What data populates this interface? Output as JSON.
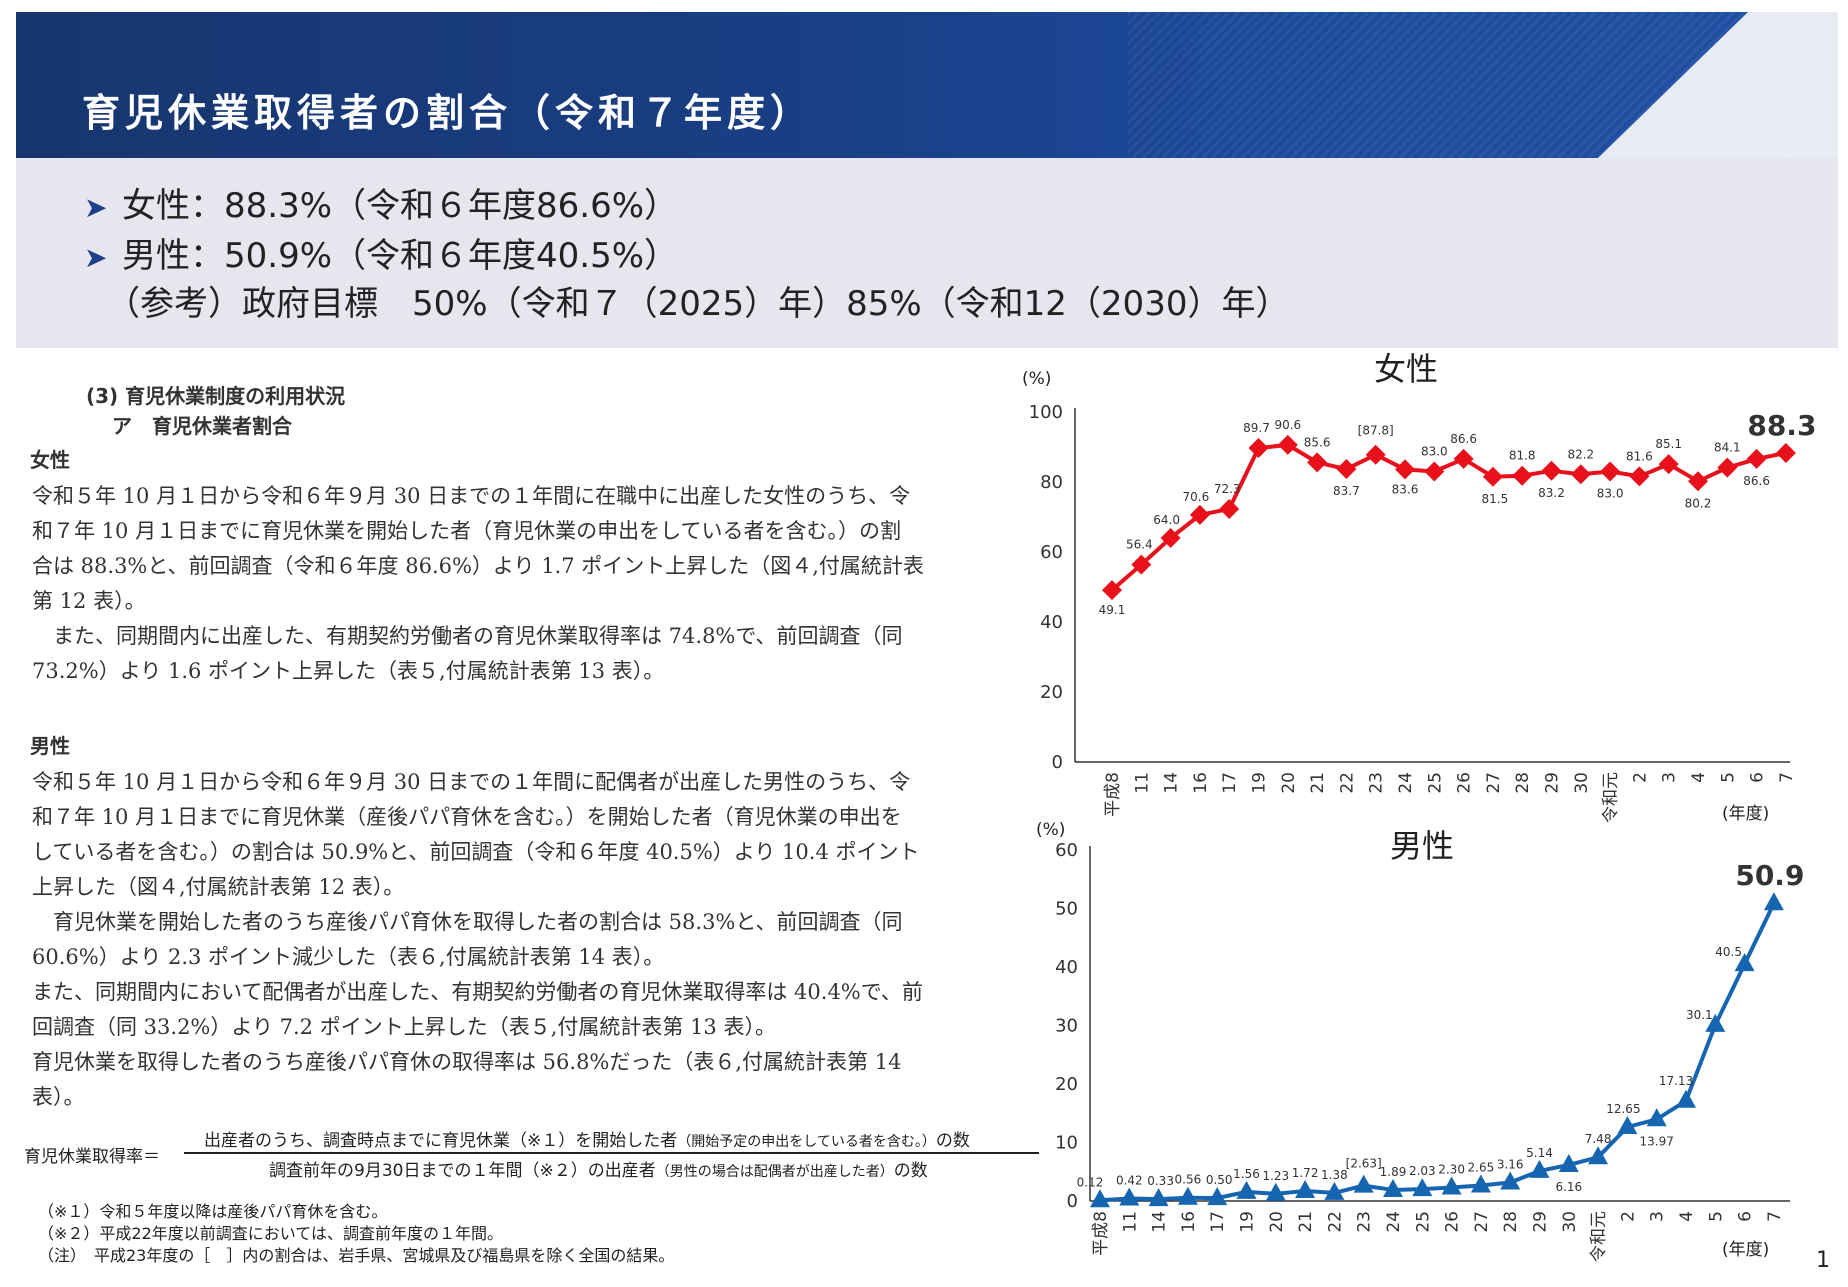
{
  "header": {
    "title": "育児休業取得者の割合（令和７年度）"
  },
  "summary": {
    "female": "女性：88.3%（令和６年度86.6%）",
    "male": "男性：50.9%（令和６年度40.5%）",
    "reference": "（参考）政府目標　50%（令和７（2025）年）85%（令和12（2030）年）"
  },
  "doc": {
    "section": "(3)  育児休業制度の利用状況",
    "subsection": "ア　育児休業者割合",
    "female_heading": "女性",
    "female_lines": [
      "令和５年 10 月１日から令和６年９月 30 日までの１年間に在職中に出産した女性のうち、令",
      "和７年 10 月１日までに育児休業を開始した者（育児休業の申出をしている者を含む。）の割",
      "合は 88.3%と、前回調査（令和６年度 86.6%）より 1.7 ポイント上昇した（図４,付属統計表",
      "第 12 表）。",
      "　また、同期間内に出産した、有期契約労働者の育児休業取得率は 74.8%で、前回調査（同",
      "73.2%）より 1.6 ポイント上昇した（表５,付属統計表第 13 表）。"
    ],
    "male_heading": "男性",
    "male_lines": [
      "令和５年 10 月１日から令和６年９月 30 日までの１年間に配偶者が出産した男性のうち、令",
      "和７年 10 月１日までに育児休業（産後パパ育休を含む。）を開始した者（育児休業の申出を",
      "している者を含む。）の割合は 50.9%と、前回調査（令和６年度 40.5%）より 10.4 ポイント",
      "上昇した（図４,付属統計表第 12 表）。",
      "　育児休業を開始した者のうち産後パパ育休を取得した者の割合は 58.3%と、前回調査（同",
      "60.6%）より 2.3 ポイント減少した（表６,付属統計表第 14 表）。",
      "また、同期間内において配偶者が出産した、有期契約労働者の育児休業取得率は 40.4%で、前",
      "回調査（同 33.2%）より 7.2 ポイント上昇した（表５,付属統計表第 13 表）。",
      "育児休業を取得した者のうち産後パパ育休の取得率は 56.8%だった（表６,付属統計表第 14",
      "表）。"
    ],
    "formula_label": "育児休業取得率＝",
    "formula_numerator": "出産者のうち、調査時点までに育児休業（※１）を開始した者",
    "formula_numerator_small": "（開始予定の申出をしている者を含む。）",
    "formula_numerator_end": "の数",
    "formula_denominator": "調査前年の9月30日までの１年間（※２）の出産者",
    "formula_denominator_small": "（男性の場合は配偶者が出産した者）",
    "formula_denominator_end": "の数",
    "notes": [
      "（※１）令和５年度以降は産後パパ育休を含む。",
      "（※２）平成22年度以前調査においては、調査前年度の１年間。",
      "（注）　平成23年度の［　］内の割合は、岩手県、宮城県及び福島県を除く全国の結果。"
    ]
  },
  "page_number": "1",
  "chart_data": [
    {
      "type": "line",
      "title": "女性",
      "ylabel": "(%)",
      "xlabel": "(年度)",
      "ylim": [
        0,
        100
      ],
      "yticks": [
        0,
        20,
        40,
        60,
        80,
        100
      ],
      "color": "#e8101a",
      "marker": "diamond",
      "categories": [
        "平成8",
        "11",
        "14",
        "16",
        "17",
        "19",
        "20",
        "21",
        "22",
        "23",
        "24",
        "25",
        "26",
        "27",
        "28",
        "29",
        "30",
        "令和元",
        "2",
        "3",
        "4",
        "5",
        "6",
        "7"
      ],
      "values": [
        49.1,
        56.4,
        64.0,
        70.6,
        72.3,
        89.7,
        90.6,
        85.6,
        83.7,
        87.8,
        83.6,
        83.0,
        86.6,
        81.5,
        81.8,
        83.2,
        82.2,
        83.0,
        81.6,
        85.1,
        80.2,
        84.1,
        86.6,
        88.3
      ],
      "labels": [
        "49.1",
        "56.4",
        "64.0",
        "70.6",
        "72.3",
        "89.7",
        "90.6",
        "85.6",
        "83.7",
        "[87.8]",
        "83.6",
        "83.0",
        "86.6",
        "81.5",
        "81.8",
        "83.2",
        "82.2",
        "83.0",
        "81.6",
        "85.1",
        "80.2",
        "84.1",
        "86.6",
        "88.3"
      ],
      "highlight": "88.3"
    },
    {
      "type": "line",
      "title": "男性",
      "ylabel": "(%)",
      "xlabel": "(年度)",
      "ylim": [
        0,
        60
      ],
      "yticks": [
        0,
        10,
        20,
        30,
        40,
        50,
        60
      ],
      "color": "#1565b0",
      "marker": "triangle",
      "categories": [
        "平成8",
        "11",
        "14",
        "16",
        "17",
        "19",
        "20",
        "21",
        "22",
        "23",
        "24",
        "25",
        "26",
        "27",
        "28",
        "29",
        "30",
        "令和元",
        "2",
        "3",
        "4",
        "5",
        "6",
        "7"
      ],
      "values": [
        0.12,
        0.42,
        0.33,
        0.56,
        0.5,
        1.56,
        1.23,
        1.72,
        1.38,
        2.63,
        1.89,
        2.03,
        2.3,
        2.65,
        3.16,
        5.14,
        6.16,
        7.48,
        12.65,
        13.97,
        17.13,
        30.1,
        40.5,
        50.9
      ],
      "labels": [
        "0.12",
        "0.42",
        "0.33",
        "0.56",
        "0.50",
        "1.56",
        "1.23",
        "1.72",
        "1.38",
        "[2.63]",
        "1.89",
        "2.03",
        "2.30",
        "2.65",
        "3.16",
        "5.14",
        "6.16",
        "7.48",
        "12.65",
        "13.97",
        "17.13",
        "30.1",
        "40.5",
        "50.9"
      ],
      "highlight": "50.9"
    }
  ]
}
